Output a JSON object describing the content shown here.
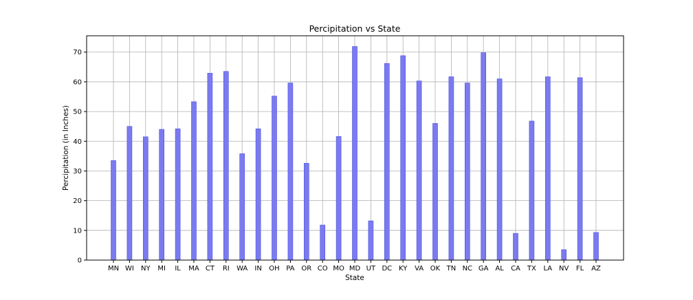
{
  "chart_data": {
    "type": "bar",
    "title": "Percipitation vs State",
    "xlabel": "State",
    "ylabel": "Percipitation (in Inches)",
    "categories": [
      "MN",
      "WI",
      "NY",
      "MI",
      "IL",
      "MA",
      "CT",
      "RI",
      "WA",
      "IN",
      "OH",
      "PA",
      "OR",
      "CO",
      "MO",
      "MD",
      "UT",
      "DC",
      "KY",
      "VA",
      "OK",
      "TN",
      "NC",
      "GA",
      "AL",
      "CA",
      "TX",
      "LA",
      "NV",
      "FL",
      "AZ"
    ],
    "values": [
      33.5,
      45.0,
      41.5,
      44.0,
      44.2,
      53.3,
      62.9,
      63.5,
      35.8,
      44.2,
      55.2,
      59.6,
      32.6,
      11.8,
      41.6,
      71.9,
      13.2,
      66.2,
      68.8,
      60.3,
      46.0,
      61.7,
      59.6,
      69.8,
      61.0,
      9.0,
      46.8,
      61.7,
      3.5,
      61.4,
      9.3
    ],
    "yticks": [
      0,
      10,
      20,
      30,
      40,
      50,
      60,
      70
    ],
    "ylim": [
      0,
      75.5
    ],
    "grid": true,
    "bar_color": "#7b7bf0",
    "bar_edge_color": "#4d4de0"
  }
}
